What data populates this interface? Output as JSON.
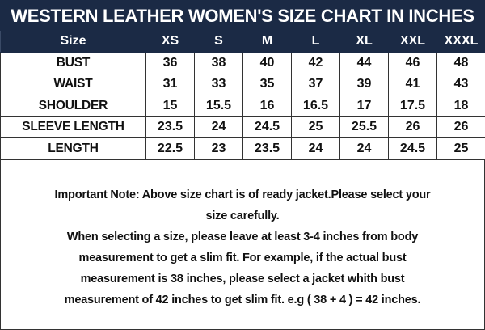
{
  "title": "WESTERN LEATHER WOMEN'S SIZE CHART IN INCHES",
  "table": {
    "headers": [
      "Size",
      "XS",
      "S",
      "M",
      "L",
      "XL",
      "XXL",
      "XXXL"
    ],
    "rows": [
      [
        "BUST",
        "36",
        "38",
        "40",
        "42",
        "44",
        "46",
        "48"
      ],
      [
        "WAIST",
        "31",
        "33",
        "35",
        "37",
        "39",
        "41",
        "43"
      ],
      [
        "SHOULDER",
        "15",
        "15.5",
        "16",
        "16.5",
        "17",
        "17.5",
        "18"
      ],
      [
        "SLEEVE LENGTH",
        "23.5",
        "24",
        "24.5",
        "25",
        "25.5",
        "26",
        "26"
      ],
      [
        "LENGTH",
        "22.5",
        "23",
        "23.5",
        "24",
        "24",
        "24.5",
        "25"
      ]
    ]
  },
  "note": {
    "lines": [
      "Important Note: Above size chart is of ready jacket.Please select your",
      "size carefully.",
      "When selecting a size, please leave at least 3-4 inches from body",
      "measurement to get a slim fit. For example, if the actual bust",
      "measurement is 38 inches, please select a jacket whith bust",
      "measurement of 42 inches to get slim fit. e.g ( 38 + 4 ) = 42 inches."
    ]
  },
  "colors": {
    "header_bg": "#1b2a45",
    "header_text": "#ffffff"
  }
}
